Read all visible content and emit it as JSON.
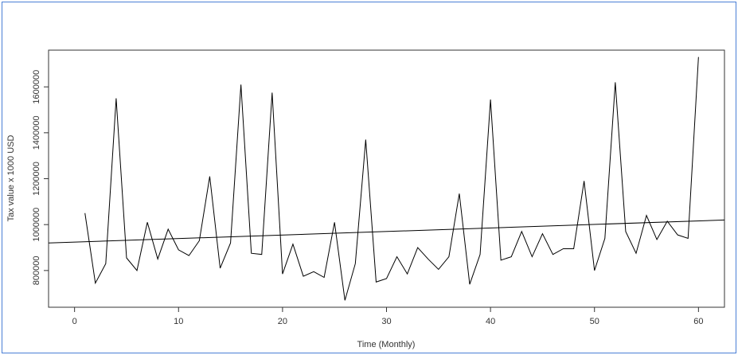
{
  "chart_data": {
    "type": "line",
    "xlabel": "Time (Monthly)",
    "ylabel": "Tax value x 1000 USD",
    "xlim": [
      -2.5,
      62.5
    ],
    "ylim": [
      640000,
      1760000
    ],
    "x_ticks": [
      0,
      10,
      20,
      30,
      40,
      50,
      60
    ],
    "y_ticks": [
      800000,
      1000000,
      1200000,
      1400000,
      1600000
    ],
    "grid": false,
    "series": [
      {
        "x": [
          1,
          2,
          3,
          4,
          5,
          6,
          7,
          8,
          9,
          10,
          11,
          12,
          13,
          14,
          15,
          16,
          17,
          18,
          19,
          20,
          21,
          22,
          23,
          24,
          25,
          26,
          27,
          28,
          29,
          30,
          31,
          32,
          33,
          34,
          35,
          36,
          37,
          38,
          39,
          40,
          41,
          42,
          43,
          44,
          45,
          46,
          47,
          48,
          49,
          50,
          51,
          52,
          53,
          54,
          55,
          56,
          57,
          58,
          59,
          60
        ],
        "values": [
          1050000,
          745000,
          830000,
          1550000,
          855000,
          800000,
          1010000,
          850000,
          980000,
          890000,
          865000,
          930000,
          1210000,
          810000,
          920000,
          1610000,
          875000,
          870000,
          1575000,
          785000,
          915000,
          775000,
          795000,
          770000,
          1010000,
          670000,
          830000,
          1370000,
          750000,
          765000,
          860000,
          785000,
          900000,
          850000,
          805000,
          860000,
          1135000,
          740000,
          870000,
          1545000,
          845000,
          860000,
          970000,
          860000,
          960000,
          870000,
          895000,
          895000,
          1190000,
          800000,
          940000,
          1620000,
          970000,
          875000,
          1040000,
          935000,
          1015000,
          955000,
          940000,
          1730000
        ],
        "color": "#000000"
      },
      {
        "type": "trend",
        "x": [
          -2.5,
          62.5
        ],
        "values": [
          920000,
          1020000
        ],
        "color": "#000000"
      }
    ]
  }
}
